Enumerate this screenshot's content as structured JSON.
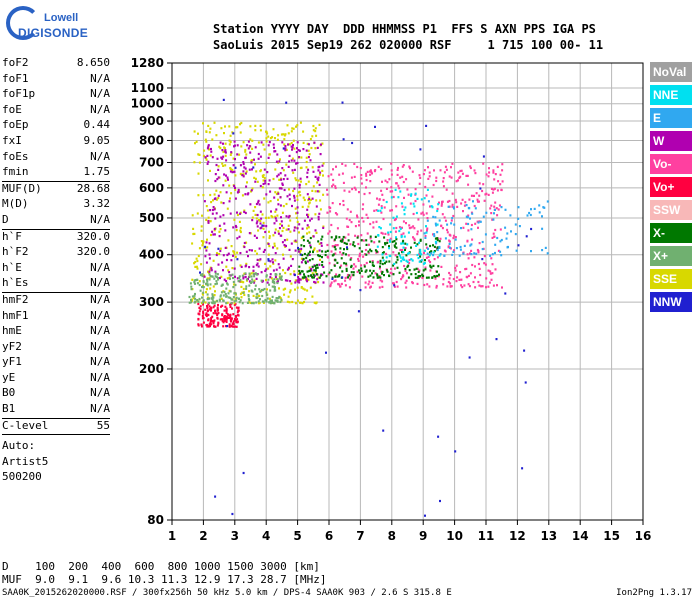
{
  "brand": {
    "line1": "Lowell",
    "line2": "DIGISONDE"
  },
  "header": {
    "line1": "Station YYYY DAY  DDD HHMMSS P1  FFS S AXN PPS IGA PS",
    "line2": "SaoLuis 2015 Sep19 262 020000 RSF     1 715 100 00- 11"
  },
  "params": [
    {
      "k": "foF2",
      "v": "8.650"
    },
    {
      "k": "foF1",
      "v": "N/A"
    },
    {
      "k": "foF1p",
      "v": "N/A"
    },
    {
      "k": "foE",
      "v": "N/A"
    },
    {
      "k": "foEp",
      "v": "0.44"
    },
    {
      "k": "fxI",
      "v": "9.05"
    },
    {
      "k": "foEs",
      "v": "N/A"
    },
    {
      "k": "fmin",
      "v": "1.75",
      "sep": true
    },
    {
      "k": "MUF(D)",
      "v": "28.68"
    },
    {
      "k": "M(D)",
      "v": "3.32"
    },
    {
      "k": "D",
      "v": "N/A",
      "sep": true
    },
    {
      "k": "h`F",
      "v": "320.0"
    },
    {
      "k": "h`F2",
      "v": "320.0"
    },
    {
      "k": "h`E",
      "v": "N/A"
    },
    {
      "k": "h`Es",
      "v": "N/A",
      "sep": true
    },
    {
      "k": "hmF2",
      "v": "N/A"
    },
    {
      "k": "hmF1",
      "v": "N/A"
    },
    {
      "k": "hmE",
      "v": "N/A"
    },
    {
      "k": "yF2",
      "v": "N/A"
    },
    {
      "k": "yF1",
      "v": "N/A"
    },
    {
      "k": "yE",
      "v": "N/A"
    },
    {
      "k": "B0",
      "v": "N/A"
    },
    {
      "k": "B1",
      "v": "N/A",
      "sep": true
    },
    {
      "k": "C-level",
      "v": "55",
      "sep": true
    }
  ],
  "auto": [
    "Auto:",
    "Artist5",
    "500200"
  ],
  "legend": [
    {
      "label": "NoVal",
      "color": "#a0a0a0"
    },
    {
      "label": "NNE",
      "color": "#00e0f0"
    },
    {
      "label": "E",
      "color": "#30a8f0"
    },
    {
      "label": "W",
      "color": "#b000b0"
    },
    {
      "label": "Vo-",
      "color": "#ff40a0"
    },
    {
      "label": "Vo+",
      "color": "#ff0040"
    },
    {
      "label": "SSW",
      "color": "#f8b8b8"
    },
    {
      "label": "X-",
      "color": "#007800"
    },
    {
      "label": "X+",
      "color": "#70b070"
    },
    {
      "label": "SSE",
      "color": "#d8d800"
    },
    {
      "label": "NNW",
      "color": "#2020d0"
    }
  ],
  "chart_data": {
    "type": "scatter",
    "title": "",
    "xlabel": "",
    "ylabel": "",
    "xlim": [
      1,
      16
    ],
    "ylim": [
      80,
      1280
    ],
    "x_ticks": [
      "1",
      "2",
      "3",
      "4",
      "5",
      "6",
      "7",
      "8",
      "9",
      "10",
      "11",
      "12",
      "13",
      "14",
      "15",
      "16"
    ],
    "y_ticks": [
      "80",
      "200",
      "300",
      "400",
      "500",
      "600",
      "700",
      "800",
      "900",
      "1000",
      "1100",
      "1280"
    ],
    "y_scale": "logarithmic",
    "grid": true,
    "clusters": [
      {
        "name": "Vo+",
        "color": "#ff0040",
        "x": [
          1.8,
          3.1
        ],
        "y": [
          260,
          300
        ]
      },
      {
        "name": "SSE",
        "color": "#d8d800",
        "x": [
          1.6,
          5.8
        ],
        "y": [
          300,
          900
        ]
      },
      {
        "name": "W",
        "color": "#b000b0",
        "x": [
          2.0,
          5.8
        ],
        "y": [
          340,
          800
        ]
      },
      {
        "name": "Vo-",
        "color": "#ff40a0",
        "x": [
          5.9,
          11.5
        ],
        "y": [
          330,
          700
        ]
      },
      {
        "name": "X-",
        "color": "#007800",
        "x": [
          5.0,
          9.5
        ],
        "y": [
          350,
          450
        ]
      },
      {
        "name": "X+",
        "color": "#70b070",
        "x": [
          1.5,
          4.5
        ],
        "y": [
          300,
          360
        ]
      },
      {
        "name": "E",
        "color": "#30a8f0",
        "x": [
          9.0,
          13.0
        ],
        "y": [
          400,
          560
        ]
      },
      {
        "name": "NNE",
        "color": "#00e0f0",
        "x": [
          7.5,
          9.5
        ],
        "y": [
          380,
          600
        ]
      },
      {
        "name": "NNW",
        "color": "#2020d0",
        "x": [
          1.6,
          12.5
        ],
        "y": [
          82,
          1050
        ]
      }
    ]
  },
  "footer": {
    "d_row": "D    100  200  400  600  800 1000 1500 3000 [km]",
    "muf_row": "MUF  9.0  9.1  9.6 10.3 11.3 12.9 17.3 28.7 [MHz]",
    "file_row": "SAA0K_2015262020000.RSF / 300fx256h 50 kHz 5.0 km / DPS-4 SAA0K 903 / 2.6 S 315.8 E",
    "version": "Ion2Png 1.3.17"
  }
}
